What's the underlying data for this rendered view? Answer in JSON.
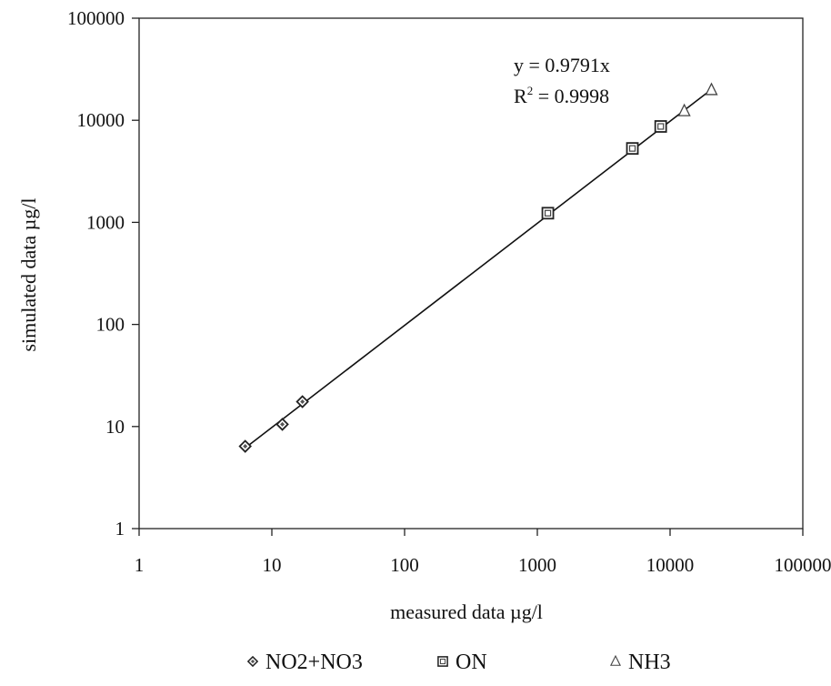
{
  "chart_data": {
    "type": "scatter",
    "title": "",
    "xlabel": "measured data µg/l",
    "ylabel": "simulated data µg/l",
    "x_scale": "log",
    "y_scale": "log",
    "xlim": [
      1,
      100000
    ],
    "ylim": [
      1,
      100000
    ],
    "x_ticks": [
      "1",
      "10",
      "100",
      "1000",
      "10000",
      "100000"
    ],
    "y_ticks": [
      "1",
      "10",
      "100",
      "1000",
      "10000",
      "100000"
    ],
    "grid": false,
    "legend_position": "bottom",
    "series": [
      {
        "name": "NO2+NO3",
        "marker": "diamond",
        "points": [
          {
            "x": 6.3,
            "y": 6.4
          },
          {
            "x": 12,
            "y": 10.5
          },
          {
            "x": 17,
            "y": 17.5
          }
        ]
      },
      {
        "name": "ON",
        "marker": "square",
        "points": [
          {
            "x": 1200,
            "y": 1230
          },
          {
            "x": 5200,
            "y": 5300
          },
          {
            "x": 8500,
            "y": 8700
          }
        ]
      },
      {
        "name": "NH3",
        "marker": "triangle",
        "points": [
          {
            "x": 12800,
            "y": 12300
          },
          {
            "x": 20500,
            "y": 19800
          }
        ]
      }
    ],
    "trendline": {
      "slope": 0.9791,
      "x_range": [
        6.2,
        21000
      ]
    },
    "annotations": {
      "equation": "y = 0.9791x",
      "r2_prefix": "R",
      "r2_exponent": "2",
      "r2_value": " = 0.9998"
    }
  }
}
